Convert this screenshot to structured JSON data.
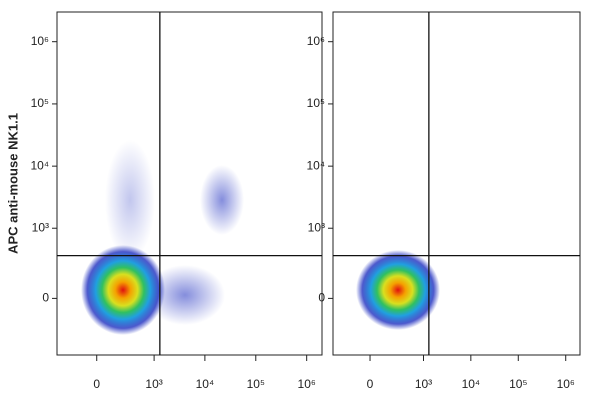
{
  "chart_data": [
    {
      "type": "density",
      "scale": "biexponential",
      "ylabel": "APC anti-mouse NK1.1",
      "xlim": [
        -440,
        2000000
      ],
      "ylim": [
        -600,
        3000000
      ],
      "xticks": [
        0,
        {
          "value": 1000,
          "label": "10³"
        },
        {
          "value": 10000,
          "label": "10⁴"
        },
        {
          "value": 100000,
          "label": "10⁵"
        },
        {
          "value": 1000000,
          "label": "10⁶"
        }
      ],
      "yticks": [
        0,
        {
          "value": 1000,
          "label": "10³"
        },
        {
          "value": 10000,
          "label": "10⁴"
        },
        {
          "value": 100000,
          "label": "10⁵"
        },
        {
          "value": 1000000,
          "label": "10⁶"
        }
      ],
      "gates": {
        "x": 1300,
        "y": 350
      }
    },
    {
      "type": "density",
      "scale": "biexponential",
      "xlim": [
        -440,
        2000000
      ],
      "ylim": [
        -600,
        3000000
      ],
      "xticks": [
        0,
        {
          "value": 1000,
          "label": "10³"
        },
        {
          "value": 10000,
          "label": "10⁴"
        },
        {
          "value": 100000,
          "label": "10⁵"
        },
        {
          "value": 1000000,
          "label": "10⁶"
        }
      ],
      "yticks": [
        0,
        {
          "value": 1000,
          "label": "10³"
        },
        {
          "value": 10000,
          "label": "10⁴"
        },
        {
          "value": 100000,
          "label": "10⁵"
        },
        {
          "value": 1000000,
          "label": "10⁶"
        }
      ],
      "gates": {
        "x": 1300,
        "y": 350
      }
    }
  ]
}
